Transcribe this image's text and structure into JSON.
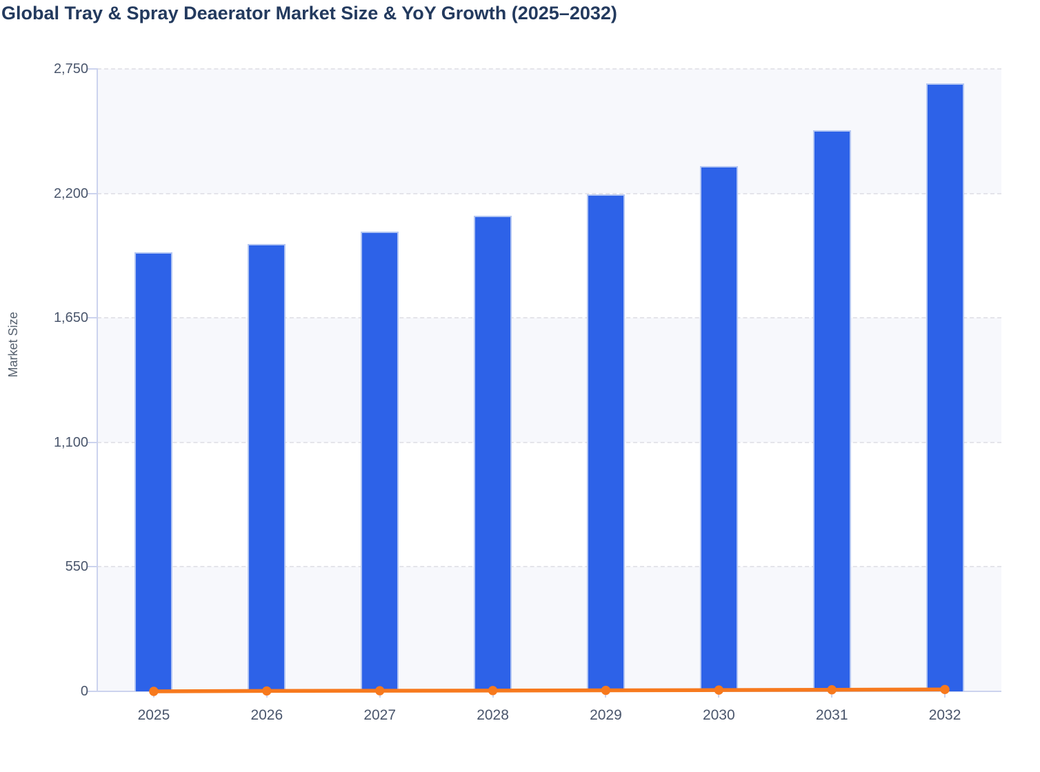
{
  "header": {
    "title": "Global Tray & Spray Deaerator Market Size & YoY Growth (2025–2032)"
  },
  "chart_data": {
    "type": "bar",
    "subtype": "bar-with-line-overlay",
    "title": "Global Tray & Spray Deaerator Market Size & YoY Growth (2025–2032)",
    "categories": [
      "2025",
      "2026",
      "2027",
      "2028",
      "2029",
      "2030",
      "2031",
      "2032"
    ],
    "series": [
      {
        "name": "Market Size",
        "type": "bar",
        "values": [
          1940,
          1975,
          2030,
          2100,
          2195,
          2320,
          2480,
          2685
        ]
      },
      {
        "name": "YoY Growth",
        "type": "line",
        "values": [
          0,
          1.8,
          2.8,
          3.5,
          4.5,
          5.7,
          6.9,
          8.3
        ],
        "note_as_rendered": "plots flat along the zero baseline of the left axis"
      }
    ],
    "xlabel": "",
    "ylabel": "Market Size",
    "ylim": [
      0,
      2750
    ],
    "y_ticks": [
      {
        "value": 0,
        "label": "0"
      },
      {
        "value": 550,
        "label": "550"
      },
      {
        "value": 1100,
        "label": "1,100"
      },
      {
        "value": 1650,
        "label": "1,650"
      },
      {
        "value": 2200,
        "label": "2,200"
      },
      {
        "value": 2750,
        "label": "2,750"
      }
    ],
    "grid": "horizontal-dashed",
    "legend": "none",
    "background_bands": "alternating tinted bands every 550 units starting at 0"
  },
  "colors": {
    "bar": "#2d62e8",
    "bar_border": "#b3c6f3",
    "line": "#f7791d",
    "title": "#233a5e",
    "tick_label": "#4a566c",
    "axis_line": "#ccd3ee",
    "gridline": "#e4e4ea",
    "band_fill": "#f7f8fc",
    "axis_title": "#55606e",
    "background": "#ffffff"
  }
}
